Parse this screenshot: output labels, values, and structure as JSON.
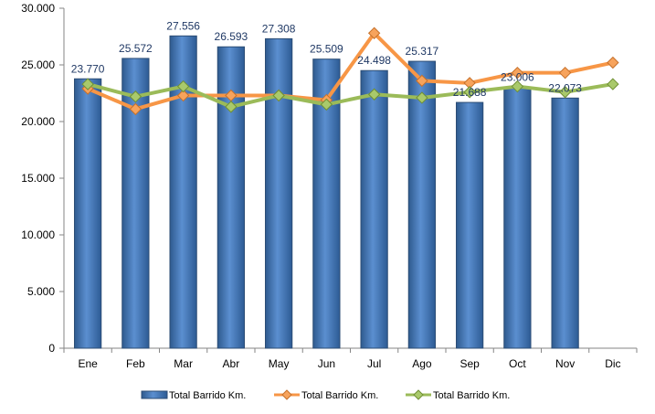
{
  "chart_data": {
    "type": "bar",
    "categories": [
      "Ene",
      "Feb",
      "Mar",
      "Abr",
      "May",
      "Jun",
      "Jul",
      "Ago",
      "Sep",
      "Oct",
      "Nov",
      "Dic"
    ],
    "ylim": [
      0,
      30000
    ],
    "yticks": [
      "0",
      "5.000",
      "10.000",
      "15.000",
      "20.000",
      "25.000",
      "30.000"
    ],
    "grid": false,
    "legend_position": "bottom",
    "series": [
      {
        "name": "Total Barrido Km.",
        "kind": "bar",
        "color": "#4f81bd",
        "values": [
          23770,
          25572,
          27556,
          26593,
          27308,
          25509,
          24498,
          25317,
          21688,
          23006,
          22073,
          null
        ],
        "labels": [
          "23.770",
          "25.572",
          "27.556",
          "26.593",
          "27.308",
          "25.509",
          "24.498",
          "25.317",
          "21.688",
          "23.006",
          "22.073",
          ""
        ]
      },
      {
        "name": "Total Barrido Km.",
        "kind": "line",
        "color": "#f79646",
        "values": [
          22900,
          21100,
          22300,
          22300,
          22300,
          21900,
          27800,
          23600,
          23400,
          24300,
          24300,
          25200
        ]
      },
      {
        "name": "Total Barrido Km.",
        "kind": "line",
        "color": "#9bbb59",
        "values": [
          23300,
          22200,
          23100,
          21300,
          22300,
          21500,
          22400,
          22100,
          22600,
          23100,
          22600,
          23300
        ]
      }
    ]
  }
}
